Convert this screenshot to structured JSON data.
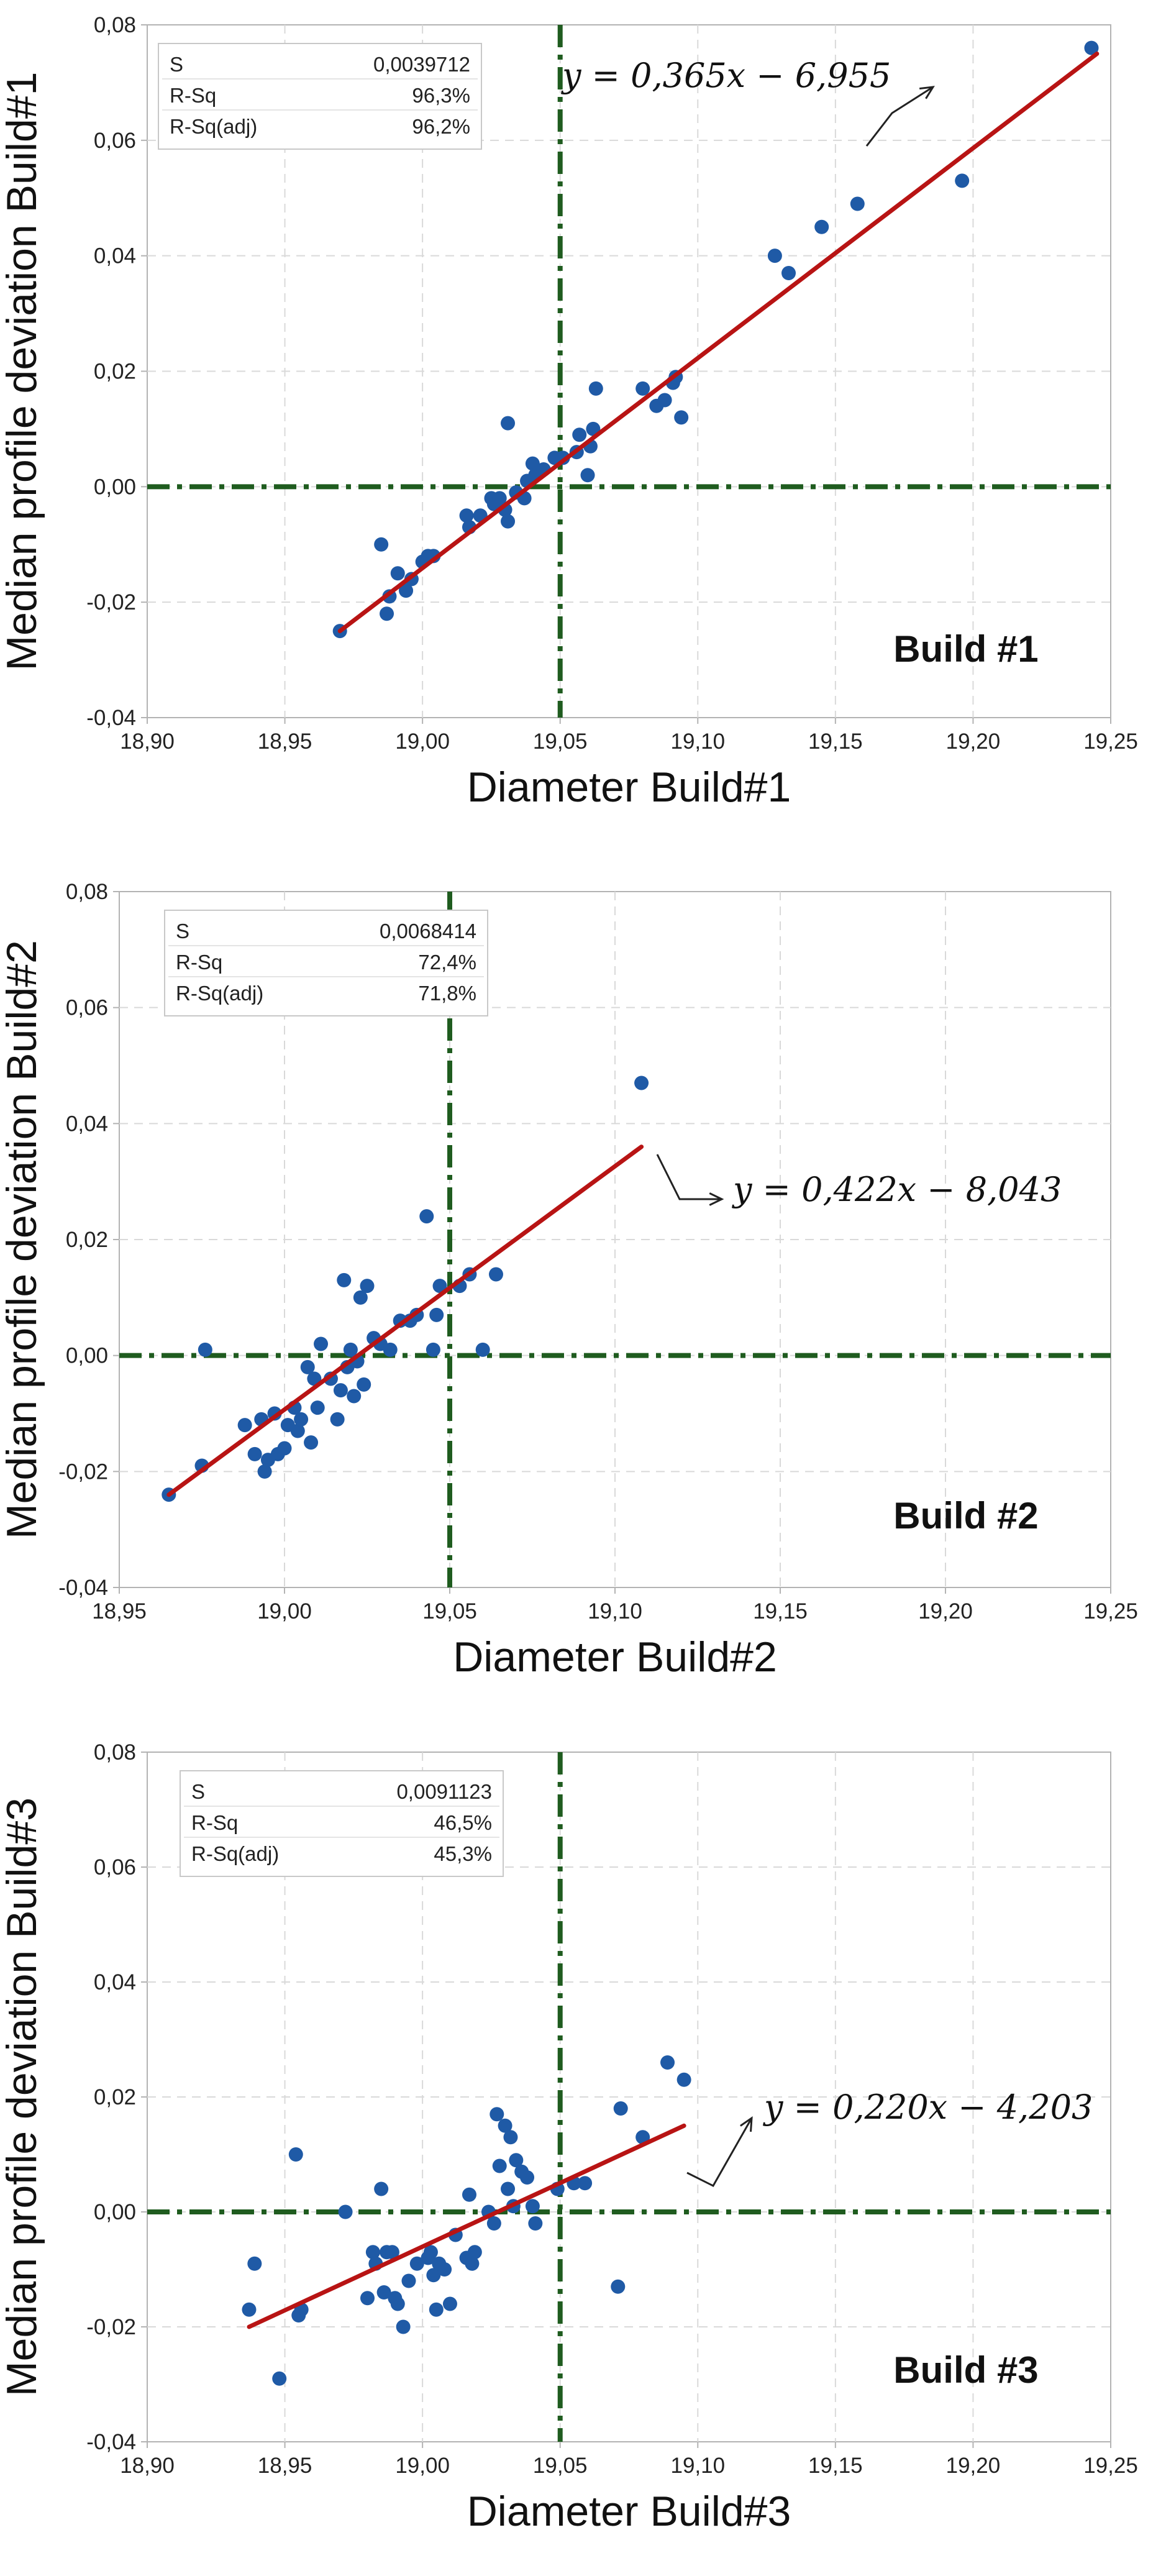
{
  "colors": {
    "point": "#1f5aa6",
    "fit_line": "#b81414",
    "reference_line": "#1f5c1f",
    "grid": "#d9d9d9",
    "frame": "#b3b3b3",
    "text": "#222222"
  },
  "chart_data": [
    {
      "type": "scatter",
      "title": "Build #1",
      "xlabel": "Diameter Build#1",
      "ylabel": "Median profile deviation  Build#1",
      "xlim": [
        18.9,
        19.25
      ],
      "ylim": [
        -0.04,
        0.08
      ],
      "xticks": [
        "18,90",
        "18,95",
        "19,00",
        "19,05",
        "19,10",
        "19,15",
        "19,20",
        "19,25"
      ],
      "yticks": [
        "-0,04",
        "-0,02",
        "0,00",
        "0,02",
        "0,04",
        "0,06",
        "0,08"
      ],
      "reference_lines": {
        "x": 19.05,
        "y": 0.0
      },
      "stats": [
        {
          "label": "S",
          "value": "0,0039712"
        },
        {
          "label": "R-Sq",
          "value": "96,3%"
        },
        {
          "label": "R-Sq(adj)",
          "value": "96,2%"
        }
      ],
      "equation": "y = 0,365x − 6,955",
      "fit_line": {
        "x": [
          18.97,
          19.245
        ],
        "y": [
          -0.025,
          0.075
        ]
      },
      "points": [
        [
          18.97,
          -0.025
        ],
        [
          18.985,
          -0.01
        ],
        [
          18.987,
          -0.022
        ],
        [
          18.988,
          -0.019
        ],
        [
          18.991,
          -0.015
        ],
        [
          18.994,
          -0.018
        ],
        [
          18.996,
          -0.016
        ],
        [
          19.0,
          -0.013
        ],
        [
          19.002,
          -0.012
        ],
        [
          19.004,
          -0.012
        ],
        [
          19.016,
          -0.005
        ],
        [
          19.017,
          -0.007
        ],
        [
          19.021,
          -0.005
        ],
        [
          19.025,
          -0.002
        ],
        [
          19.026,
          -0.003
        ],
        [
          19.028,
          -0.002
        ],
        [
          19.03,
          -0.004
        ],
        [
          19.031,
          -0.006
        ],
        [
          19.031,
          0.011
        ],
        [
          19.034,
          -0.001
        ],
        [
          19.037,
          -0.002
        ],
        [
          19.038,
          0.001
        ],
        [
          19.04,
          0.004
        ],
        [
          19.041,
          0.002
        ],
        [
          19.044,
          0.003
        ],
        [
          19.048,
          0.005
        ],
        [
          19.051,
          0.005
        ],
        [
          19.056,
          0.006
        ],
        [
          19.057,
          0.009
        ],
        [
          19.06,
          0.002
        ],
        [
          19.061,
          0.007
        ],
        [
          19.062,
          0.01
        ],
        [
          19.063,
          0.017
        ],
        [
          19.08,
          0.017
        ],
        [
          19.085,
          0.014
        ],
        [
          19.088,
          0.015
        ],
        [
          19.091,
          0.018
        ],
        [
          19.092,
          0.019
        ],
        [
          19.094,
          0.012
        ],
        [
          19.128,
          0.04
        ],
        [
          19.133,
          0.037
        ],
        [
          19.145,
          0.045
        ],
        [
          19.158,
          0.049
        ],
        [
          19.196,
          0.053
        ],
        [
          19.243,
          0.076
        ]
      ]
    },
    {
      "type": "scatter",
      "title": "Build #2",
      "xlabel": "Diameter Build#2",
      "ylabel": "Median profile deviation  Build#2",
      "xlim": [
        18.95,
        19.25
      ],
      "ylim": [
        -0.04,
        0.08
      ],
      "xticks": [
        "18,95",
        "19,00",
        "19,05",
        "19,10",
        "19,15",
        "19,20",
        "19,25"
      ],
      "yticks": [
        "-0,04",
        "-0,02",
        "0,00",
        "0,02",
        "0,04",
        "0,06",
        "0,08"
      ],
      "reference_lines": {
        "x": 19.05,
        "y": 0.0
      },
      "stats": [
        {
          "label": "S",
          "value": "0,0068414"
        },
        {
          "label": "R-Sq",
          "value": "72,4%"
        },
        {
          "label": "R-Sq(adj)",
          "value": "71,8%"
        }
      ],
      "equation": "y = 0,422x − 8,043",
      "fit_line": {
        "x": [
          18.965,
          19.108
        ],
        "y": [
          -0.024,
          0.036
        ]
      },
      "points": [
        [
          18.965,
          -0.024
        ],
        [
          18.975,
          -0.019
        ],
        [
          18.976,
          0.001
        ],
        [
          18.988,
          -0.012
        ],
        [
          18.991,
          -0.017
        ],
        [
          18.993,
          -0.011
        ],
        [
          18.994,
          -0.02
        ],
        [
          18.995,
          -0.018
        ],
        [
          18.997,
          -0.01
        ],
        [
          18.998,
          -0.017
        ],
        [
          19.0,
          -0.016
        ],
        [
          19.001,
          -0.012
        ],
        [
          19.003,
          -0.009
        ],
        [
          19.004,
          -0.013
        ],
        [
          19.005,
          -0.011
        ],
        [
          19.007,
          -0.002
        ],
        [
          19.008,
          -0.015
        ],
        [
          19.009,
          -0.004
        ],
        [
          19.01,
          -0.009
        ],
        [
          19.011,
          0.002
        ],
        [
          19.014,
          -0.004
        ],
        [
          19.016,
          -0.011
        ],
        [
          19.017,
          -0.006
        ],
        [
          19.018,
          0.013
        ],
        [
          19.019,
          -0.002
        ],
        [
          19.02,
          0.001
        ],
        [
          19.021,
          -0.007
        ],
        [
          19.022,
          -0.001
        ],
        [
          19.023,
          0.01
        ],
        [
          19.024,
          -0.005
        ],
        [
          19.025,
          0.012
        ],
        [
          19.027,
          0.003
        ],
        [
          19.029,
          0.002
        ],
        [
          19.032,
          0.001
        ],
        [
          19.035,
          0.006
        ],
        [
          19.038,
          0.006
        ],
        [
          19.04,
          0.007
        ],
        [
          19.043,
          0.024
        ],
        [
          19.045,
          0.001
        ],
        [
          19.046,
          0.007
        ],
        [
          19.047,
          0.012
        ],
        [
          19.053,
          0.012
        ],
        [
          19.056,
          0.014
        ],
        [
          19.06,
          0.001
        ],
        [
          19.064,
          0.014
        ],
        [
          19.108,
          0.047
        ]
      ]
    },
    {
      "type": "scatter",
      "title": "Build #3",
      "xlabel": "Diameter Build#3",
      "ylabel": "Median profile deviation  Build#3",
      "xlim": [
        18.9,
        19.25
      ],
      "ylim": [
        -0.04,
        0.08
      ],
      "xticks": [
        "18,90",
        "18,95",
        "19,00",
        "19,05",
        "19,10",
        "19,15",
        "19,20",
        "19,25"
      ],
      "yticks": [
        "-0,04",
        "-0,02",
        "0,00",
        "0,02",
        "0,04",
        "0,06",
        "0,08"
      ],
      "reference_lines": {
        "x": 19.05,
        "y": 0.0
      },
      "stats": [
        {
          "label": "S",
          "value": "0,0091123"
        },
        {
          "label": "R-Sq",
          "value": "46,5%"
        },
        {
          "label": "R-Sq(adj)",
          "value": "45,3%"
        }
      ],
      "equation": "y = 0,220x − 4,203",
      "fit_line": {
        "x": [
          18.937,
          19.095
        ],
        "y": [
          -0.02,
          0.015
        ]
      },
      "points": [
        [
          18.937,
          -0.017
        ],
        [
          18.939,
          -0.009
        ],
        [
          18.948,
          -0.029
        ],
        [
          18.954,
          0.01
        ],
        [
          18.955,
          -0.018
        ],
        [
          18.956,
          -0.017
        ],
        [
          18.972,
          0.0
        ],
        [
          18.98,
          -0.015
        ],
        [
          18.982,
          -0.007
        ],
        [
          18.983,
          -0.009
        ],
        [
          18.985,
          0.004
        ],
        [
          18.986,
          -0.014
        ],
        [
          18.987,
          -0.007
        ],
        [
          18.989,
          -0.007
        ],
        [
          18.99,
          -0.015
        ],
        [
          18.991,
          -0.016
        ],
        [
          18.993,
          -0.02
        ],
        [
          18.995,
          -0.012
        ],
        [
          18.998,
          -0.009
        ],
        [
          19.002,
          -0.008
        ],
        [
          19.003,
          -0.007
        ],
        [
          19.004,
          -0.011
        ],
        [
          19.005,
          -0.017
        ],
        [
          19.006,
          -0.009
        ],
        [
          19.008,
          -0.01
        ],
        [
          19.01,
          -0.016
        ],
        [
          19.012,
          -0.004
        ],
        [
          19.016,
          -0.008
        ],
        [
          19.017,
          0.003
        ],
        [
          19.018,
          -0.009
        ],
        [
          19.019,
          -0.007
        ],
        [
          19.024,
          0.0
        ],
        [
          19.026,
          -0.002
        ],
        [
          19.027,
          0.017
        ],
        [
          19.028,
          0.008
        ],
        [
          19.03,
          0.015
        ],
        [
          19.031,
          0.004
        ],
        [
          19.032,
          0.013
        ],
        [
          19.033,
          0.001
        ],
        [
          19.034,
          0.009
        ],
        [
          19.036,
          0.007
        ],
        [
          19.038,
          0.006
        ],
        [
          19.04,
          0.001
        ],
        [
          19.041,
          -0.002
        ],
        [
          19.049,
          0.004
        ],
        [
          19.055,
          0.005
        ],
        [
          19.059,
          0.005
        ],
        [
          19.071,
          -0.013
        ],
        [
          19.072,
          0.018
        ],
        [
          19.08,
          0.013
        ],
        [
          19.089,
          0.026
        ],
        [
          19.095,
          0.023
        ]
      ]
    }
  ]
}
